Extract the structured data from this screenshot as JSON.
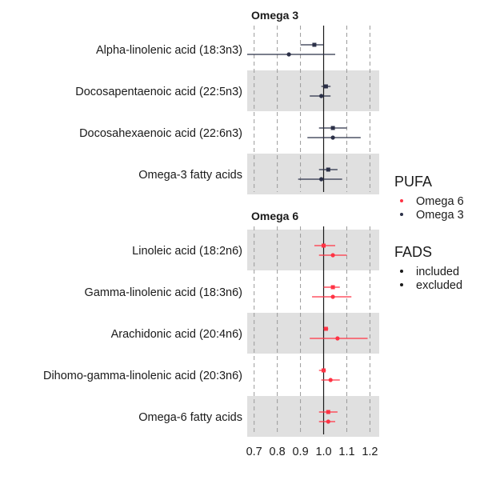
{
  "chart_data": {
    "type": "forest",
    "xlim": [
      0.67,
      1.24
    ],
    "x_ticks": [
      {
        "value": 0.7,
        "label": "0.7"
      },
      {
        "value": 0.8,
        "label": "0.8"
      },
      {
        "value": 0.9,
        "label": "0.9"
      },
      {
        "value": 1.0,
        "label": "1.0"
      },
      {
        "value": 1.1,
        "label": "1.1"
      },
      {
        "value": 1.2,
        "label": "1.2"
      }
    ],
    "reference_line": 1.0,
    "grid": "dashed vertical",
    "legend_position": "right",
    "legends": [
      {
        "title": "PUFA",
        "items": [
          {
            "label": "Omega 6",
            "color": "#FF3344"
          },
          {
            "label": "Omega 3",
            "color": "#2B3048"
          }
        ]
      },
      {
        "title": "FADS",
        "items": [
          {
            "label": "included",
            "shape": "square"
          },
          {
            "label": "excluded",
            "shape": "circle"
          }
        ]
      }
    ],
    "panels": [
      {
        "title": "Omega 3",
        "color": "#2B3048",
        "rows": [
          {
            "label": "Alpha-linolenic acid (18:3n3)",
            "shaded": false,
            "included": {
              "est": 0.96,
              "lo": 0.9,
              "hi": 1.0
            },
            "excluded": {
              "est": 0.85,
              "lo": 0.67,
              "hi": 1.05
            }
          },
          {
            "label": "Docosapentaenoic acid (22:5n3)",
            "shaded": true,
            "included": {
              "est": 1.01,
              "lo": 0.99,
              "hi": 1.03
            },
            "excluded": {
              "est": 0.99,
              "lo": 0.94,
              "hi": 1.03
            }
          },
          {
            "label": "Docosahexaenoic acid (22:6n3)",
            "shaded": false,
            "included": {
              "est": 1.04,
              "lo": 0.98,
              "hi": 1.1
            },
            "excluded": {
              "est": 1.04,
              "lo": 0.93,
              "hi": 1.16
            }
          },
          {
            "label": "Omega-3 fatty acids",
            "shaded": true,
            "included": {
              "est": 1.02,
              "lo": 0.98,
              "hi": 1.06
            },
            "excluded": {
              "est": 0.99,
              "lo": 0.89,
              "hi": 1.08
            }
          }
        ]
      },
      {
        "title": "Omega 6",
        "color": "#FF3344",
        "rows": [
          {
            "label": "Linoleic acid (18:2n6)",
            "shaded": true,
            "included": {
              "est": 1.0,
              "lo": 0.96,
              "hi": 1.05
            },
            "excluded": {
              "est": 1.04,
              "lo": 0.98,
              "hi": 1.1
            }
          },
          {
            "label": "Gamma-linolenic acid (18:3n6)",
            "shaded": false,
            "included": {
              "est": 1.04,
              "lo": 1.0,
              "hi": 1.07
            },
            "excluded": {
              "est": 1.04,
              "lo": 0.95,
              "hi": 1.12
            }
          },
          {
            "label": "Arachidonic acid (20:4n6)",
            "shaded": true,
            "included": {
              "est": 1.01,
              "lo": 1.0,
              "hi": 1.02
            },
            "excluded": {
              "est": 1.06,
              "lo": 0.94,
              "hi": 1.19
            }
          },
          {
            "label": "Dihomo-gamma-linolenic acid (20:3n6)",
            "shaded": false,
            "included": {
              "est": 1.0,
              "lo": 0.98,
              "hi": 1.01
            },
            "excluded": {
              "est": 1.03,
              "lo": 0.99,
              "hi": 1.07
            }
          },
          {
            "label": "Omega-6 fatty acids",
            "shaded": true,
            "included": {
              "est": 1.02,
              "lo": 0.98,
              "hi": 1.06
            },
            "excluded": {
              "est": 1.02,
              "lo": 0.98,
              "hi": 1.05
            }
          }
        ]
      }
    ]
  }
}
